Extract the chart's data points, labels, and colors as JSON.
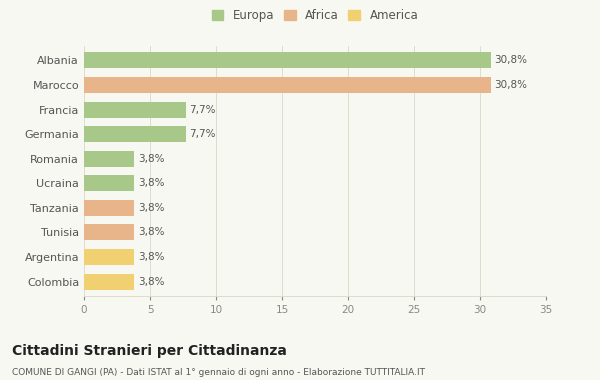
{
  "categories": [
    "Albania",
    "Marocco",
    "Francia",
    "Germania",
    "Romania",
    "Ucraina",
    "Tanzania",
    "Tunisia",
    "Argentina",
    "Colombia"
  ],
  "values": [
    30.8,
    30.8,
    7.7,
    7.7,
    3.8,
    3.8,
    3.8,
    3.8,
    3.8,
    3.8
  ],
  "labels": [
    "30,8%",
    "30,8%",
    "7,7%",
    "7,7%",
    "3,8%",
    "3,8%",
    "3,8%",
    "3,8%",
    "3,8%",
    "3,8%"
  ],
  "colors": [
    "#a8c88a",
    "#e8b48a",
    "#a8c88a",
    "#a8c88a",
    "#a8c88a",
    "#a8c88a",
    "#e8b48a",
    "#e8b48a",
    "#f0d070",
    "#f0d070"
  ],
  "legend": [
    {
      "label": "Europa",
      "color": "#a8c88a"
    },
    {
      "label": "Africa",
      "color": "#e8b48a"
    },
    {
      "label": "America",
      "color": "#f0d070"
    }
  ],
  "xlim": [
    0,
    35
  ],
  "xticks": [
    0,
    5,
    10,
    15,
    20,
    25,
    30,
    35
  ],
  "title": "Cittadini Stranieri per Cittadinanza",
  "subtitle": "COMUNE DI GANGI (PA) - Dati ISTAT al 1° gennaio di ogni anno - Elaborazione TUTTITALIA.IT",
  "background_color": "#f8f8f2",
  "bar_height": 0.65,
  "grid_color": "#ddddcc",
  "label_fontsize": 7.5,
  "ytick_fontsize": 8,
  "xtick_fontsize": 7.5,
  "title_fontsize": 10,
  "subtitle_fontsize": 6.5,
  "legend_fontsize": 8.5
}
